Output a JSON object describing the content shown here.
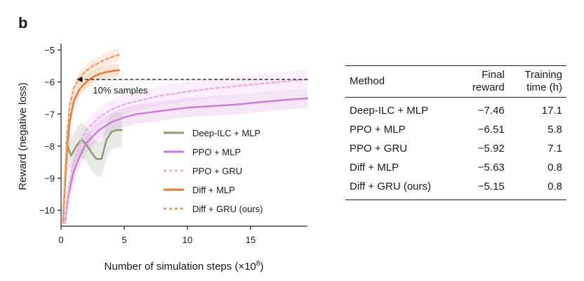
{
  "panel_label": "b",
  "chart_data": {
    "type": "line",
    "title": "",
    "xlabel": "Number of simulation steps (×10",
    "xlabel_superscript": "8",
    "xlabel_suffix": ")",
    "ylabel": "Reward (negative loss)",
    "xlim": [
      0,
      19.5
    ],
    "ylim": [
      -10.5,
      -4.8
    ],
    "xticks": [
      0,
      5,
      10,
      15
    ],
    "xtick_labels": [
      "0",
      "5",
      "10",
      "15"
    ],
    "yticks": [
      -5,
      -6,
      -7,
      -8,
      -9,
      -10
    ],
    "ytick_labels": [
      "−5",
      "−6",
      "−7",
      "−8",
      "−9",
      "−10"
    ],
    "legend_position": "center-right",
    "series": [
      {
        "name": "Deep-ILC + MLP",
        "color": "#8a9a72",
        "dash": "solid",
        "x": [
          0.4,
          0.8,
          1.2,
          1.6,
          2.0,
          2.4,
          2.8,
          3.2,
          3.6,
          4.0,
          4.4,
          4.8
        ],
        "y": [
          -7.9,
          -8.3,
          -8.0,
          -7.8,
          -7.95,
          -8.2,
          -8.4,
          -8.4,
          -7.8,
          -7.55,
          -7.5,
          -7.5
        ],
        "band": 0.55
      },
      {
        "name": "PPO + MLP",
        "color": "#c97fd6",
        "dash": "solid",
        "x": [
          0.3,
          0.6,
          1,
          1.5,
          2,
          3,
          4,
          5,
          6,
          7,
          8,
          10,
          12,
          14,
          16,
          18,
          19.5
        ],
        "y": [
          -10.4,
          -9.5,
          -8.8,
          -8.3,
          -7.9,
          -7.5,
          -7.25,
          -7.1,
          -7.0,
          -6.95,
          -6.9,
          -6.8,
          -6.75,
          -6.7,
          -6.62,
          -6.55,
          -6.51
        ],
        "band": 0.3
      },
      {
        "name": "PPO + GRU",
        "color": "#ecaeea",
        "dash": "dashed",
        "x": [
          0.3,
          0.6,
          1,
          1.5,
          2,
          3,
          4,
          5,
          6,
          7,
          8,
          10,
          12,
          14,
          16,
          18,
          19.5
        ],
        "y": [
          -10.4,
          -9.3,
          -8.5,
          -7.9,
          -7.5,
          -7.1,
          -6.85,
          -6.7,
          -6.6,
          -6.5,
          -6.42,
          -6.3,
          -6.2,
          -6.12,
          -6.05,
          -5.97,
          -5.92
        ],
        "band": 0.3
      },
      {
        "name": "Diff + MLP",
        "color": "#e07b39",
        "dash": "solid",
        "x": [
          0.15,
          0.3,
          0.5,
          0.7,
          1,
          1.5,
          2,
          2.5,
          3,
          3.5,
          4,
          4.6
        ],
        "y": [
          -10.4,
          -9.3,
          -8.0,
          -7.2,
          -6.6,
          -6.2,
          -6.0,
          -5.85,
          -5.75,
          -5.7,
          -5.66,
          -5.63
        ],
        "band": 0.2
      },
      {
        "name": "Diff + GRU (ours)",
        "color": "#f0a06a",
        "dash": "dashed",
        "x": [
          0.15,
          0.3,
          0.5,
          0.7,
          1,
          1.5,
          2,
          2.5,
          3,
          3.5,
          4,
          4.6
        ],
        "y": [
          -10.4,
          -9.0,
          -7.5,
          -6.7,
          -6.2,
          -5.85,
          -5.65,
          -5.5,
          -5.4,
          -5.3,
          -5.22,
          -5.15
        ],
        "band": 0.2
      }
    ],
    "annotation": {
      "text": "10% samples",
      "reference_y": -5.92,
      "from_x": 19.5,
      "to_x": 1.3
    }
  },
  "table": {
    "headers": [
      {
        "line1": "Method",
        "line2": ""
      },
      {
        "line1": "Final",
        "line2": "reward"
      },
      {
        "line1": "Training",
        "line2": "time (h)"
      }
    ],
    "rows": [
      {
        "method": "Deep-ILC + MLP",
        "reward": "−7.46",
        "time": "17.1"
      },
      {
        "method": "PPO + MLP",
        "reward": "−6.51",
        "time": "5.8"
      },
      {
        "method": "PPO + GRU",
        "reward": "−5.92",
        "time": "7.1"
      },
      {
        "method": "Diff + MLP",
        "reward": "−5.63",
        "time": "0.8"
      },
      {
        "method": "Diff + GRU (ours)",
        "reward": "−5.15",
        "time": "0.8"
      }
    ]
  }
}
